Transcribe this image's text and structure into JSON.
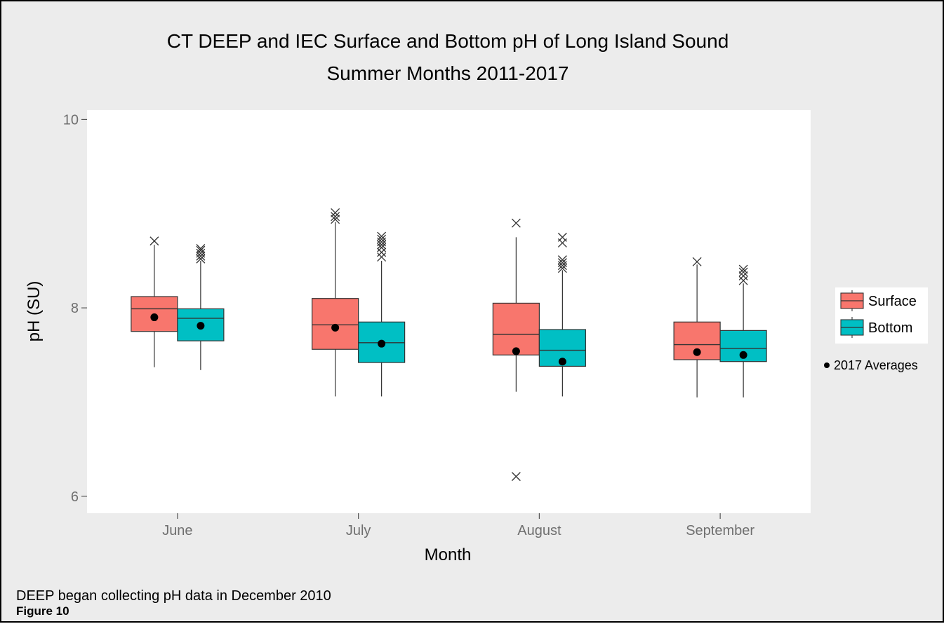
{
  "figure": {
    "note": "DEEP began collecting pH data in December 2010",
    "label": "Figure 10"
  },
  "colors": {
    "page_background": "#ececec",
    "panel_background": "#ffffff",
    "surface_fill": "#f8766d",
    "bottom_fill": "#00bfc4",
    "box_stroke": "#333333",
    "mean_point": "#000000",
    "outlier": "#333333",
    "tick_label": "#6f6f6f"
  },
  "chart_data": {
    "type": "boxplot",
    "title": "CT DEEP and IEC Surface and Bottom pH of Long Island Sound",
    "subtitle": "Summer Months 2011-2017",
    "xlabel": "Month",
    "ylabel": "pH (SU)",
    "categories": [
      "June",
      "July",
      "August",
      "September"
    ],
    "ylim": [
      5.82,
      10.1
    ],
    "yticks": [
      6,
      8,
      10
    ],
    "ytick_labels": [
      "6",
      "8",
      "10"
    ],
    "grid": false,
    "legend_position": "right",
    "outlier_marker": "x",
    "mean_marker": "filled-circle",
    "legend": {
      "entries": [
        "Surface",
        "Bottom"
      ],
      "mean_label": "2017 Averages"
    },
    "series": [
      {
        "name": "Surface",
        "color": "#f8766d",
        "boxes": [
          {
            "category": "June",
            "whisker_low": 7.37,
            "q1": 7.75,
            "median": 7.99,
            "q3": 8.12,
            "whisker_high": 8.67,
            "mean_2017": 7.9,
            "outliers": [
              8.71
            ]
          },
          {
            "category": "July",
            "whisker_low": 7.06,
            "q1": 7.56,
            "median": 7.82,
            "q3": 8.1,
            "whisker_high": 8.91,
            "mean_2017": 7.79,
            "outliers": [
              8.94,
              8.97,
              9.01
            ]
          },
          {
            "category": "August",
            "whisker_low": 7.11,
            "q1": 7.5,
            "median": 7.72,
            "q3": 8.05,
            "whisker_high": 8.75,
            "mean_2017": 7.54,
            "outliers": [
              8.9,
              6.21
            ]
          },
          {
            "category": "September",
            "whisker_low": 7.05,
            "q1": 7.45,
            "median": 7.61,
            "q3": 7.85,
            "whisker_high": 8.46,
            "mean_2017": 7.53,
            "outliers": [
              8.49
            ]
          }
        ]
      },
      {
        "name": "Bottom",
        "color": "#00bfc4",
        "boxes": [
          {
            "category": "June",
            "whisker_low": 7.34,
            "q1": 7.65,
            "median": 7.89,
            "q3": 7.99,
            "whisker_high": 8.5,
            "mean_2017": 7.81,
            "outliers": [
              8.52,
              8.55,
              8.58,
              8.61,
              8.63
            ]
          },
          {
            "category": "July",
            "whisker_low": 7.06,
            "q1": 7.42,
            "median": 7.63,
            "q3": 7.85,
            "whisker_high": 8.5,
            "mean_2017": 7.62,
            "outliers": [
              8.54,
              8.59,
              8.64,
              8.67,
              8.7,
              8.73,
              8.76
            ]
          },
          {
            "category": "August",
            "whisker_low": 7.06,
            "q1": 7.38,
            "median": 7.55,
            "q3": 7.77,
            "whisker_high": 8.4,
            "mean_2017": 7.43,
            "outliers": [
              8.42,
              8.45,
              8.48,
              8.51,
              8.69,
              8.75
            ]
          },
          {
            "category": "September",
            "whisker_low": 7.05,
            "q1": 7.43,
            "median": 7.57,
            "q3": 7.76,
            "whisker_high": 8.26,
            "mean_2017": 7.5,
            "outliers": [
              8.29,
              8.34,
              8.38,
              8.41
            ]
          }
        ]
      }
    ]
  }
}
